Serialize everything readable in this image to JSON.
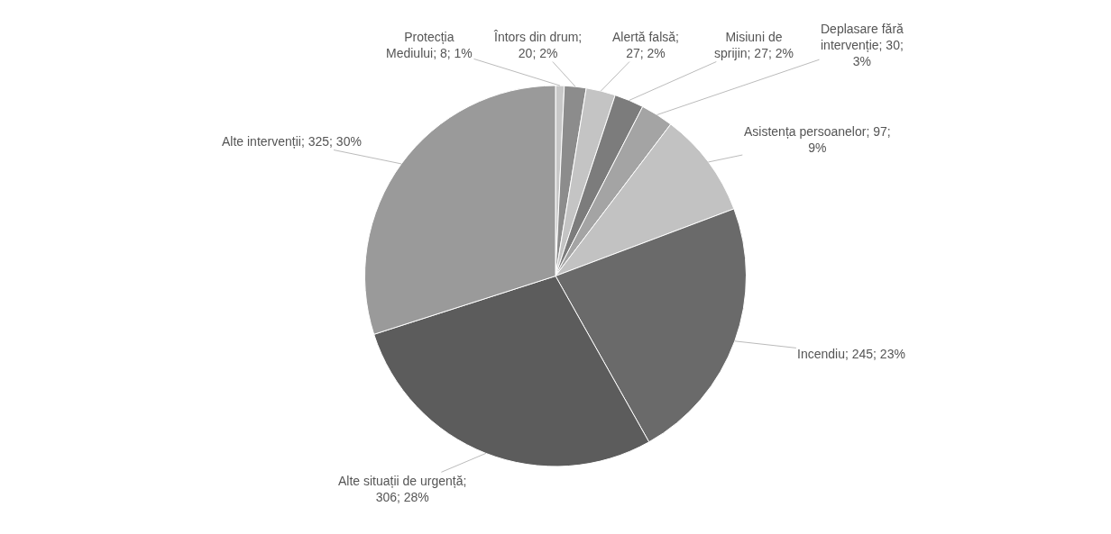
{
  "chart_data": {
    "type": "pie",
    "categories": [
      "Protecția Mediului; 8; 1%",
      "Întors din drum; 20; 2%",
      "Alertă falsă; 27; 2%",
      "Misiuni de sprijin; 27; 2%",
      "Deplasare fără intervenție; 30; 3%",
      "Asistența persoanelor; 97; 9%",
      "Incendiu; 245; 23%",
      "Alte situații de urgență; 306; 28%",
      "Alte intervenții; 325; 30%"
    ],
    "values": [
      8,
      20,
      27,
      27,
      30,
      97,
      245,
      306,
      325
    ],
    "colors": [
      "#c8c8c8",
      "#8c8c8c",
      "#c4c4c4",
      "#7c7c7c",
      "#a4a4a4",
      "#c2c2c2",
      "#6a6a6a",
      "#5c5c5c",
      "#9a9a9a"
    ]
  }
}
